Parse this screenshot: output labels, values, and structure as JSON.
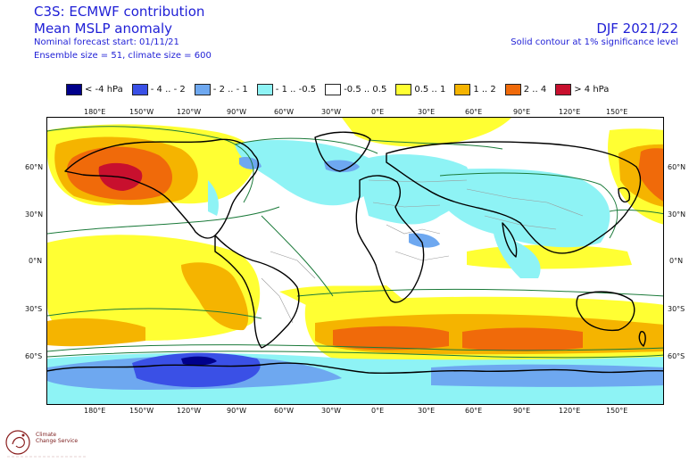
{
  "header": {
    "title": "C3S: ECMWF contribution",
    "subtitle": "Mean MSLP anomaly",
    "forecast_start": "Nominal forecast start: 01/11/21",
    "ensemble": "Ensemble size = 51, climate size = 600",
    "season": "DJF 2021/22",
    "contour_note": "Solid contour at 1% significance level"
  },
  "legend": [
    {
      "label": "< -4 hPa",
      "color": "#00008b"
    },
    {
      "label": "- 4 .. - 2",
      "color": "#3a50e6"
    },
    {
      "label": "- 2 .. - 1",
      "color": "#6ea8f0"
    },
    {
      "label": "- 1 .. -0.5",
      "color": "#8ef3f5"
    },
    {
      "label": "-0.5 .. 0.5",
      "color": "#ffffff"
    },
    {
      "label": "0.5 .. 1",
      "color": "#ffff33"
    },
    {
      "label": "1 .. 2",
      "color": "#f5b400"
    },
    {
      "label": "2 .. 4",
      "color": "#f06a0a"
    },
    {
      "label": "> 4 hPa",
      "color": "#c8102e"
    }
  ],
  "lon_ticks": [
    "180°E",
    "150°W",
    "120°W",
    "90°W",
    "60°W",
    "30°W",
    "0°E",
    "30°E",
    "60°E",
    "90°E",
    "120°E",
    "150°E"
  ],
  "lat_ticks": [
    "60°N",
    "30°N",
    "0°N",
    "30°S",
    "60°S"
  ],
  "logo": {
    "line1": "Climate",
    "line2": "Change Service"
  },
  "colors": {
    "text": "#1f1fd6",
    "coast": "#000000",
    "contour": "#1b7a3a",
    "border": "#9a9a9a"
  }
}
